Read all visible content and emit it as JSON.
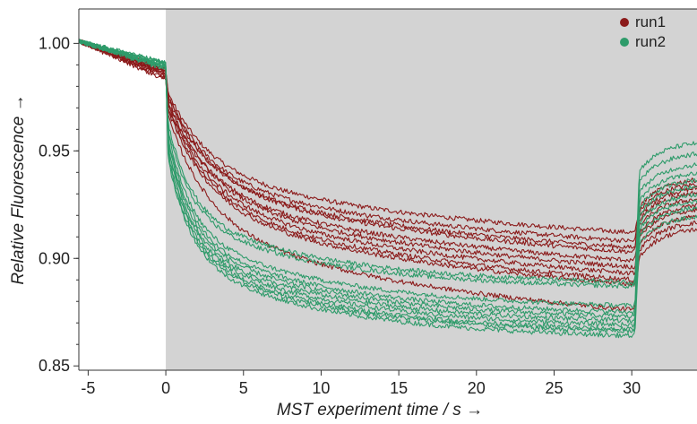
{
  "chart_data": {
    "type": "line",
    "xlabel": "MST experiment time / s →",
    "ylabel": "Relative Fluorescence →",
    "xlim": [
      -5.6,
      34.2
    ],
    "ylim": [
      0.848,
      1.016
    ],
    "xticks": [
      -5,
      0,
      5,
      10,
      15,
      20,
      25,
      30
    ],
    "yticks": [
      0.85,
      0.9,
      0.95,
      1.0
    ],
    "ytick_labels": [
      "0.85",
      "0.90",
      "0.95",
      "1.00"
    ],
    "shaded_region": {
      "from": 0,
      "to": 34.2,
      "color": "#d3d3d3"
    },
    "legend": {
      "position": "top-right"
    },
    "colors": {
      "run1": "#8b1a1a",
      "run2": "#2e9b6a"
    },
    "series": [
      {
        "name": "run1",
        "color": "#8b1a1a",
        "traces": [
          {
            "pre": 0.988,
            "drop": 0.977,
            "end": 0.912,
            "rec": 0.934
          },
          {
            "pre": 0.987,
            "drop": 0.975,
            "end": 0.908,
            "rec": 0.936
          },
          {
            "pre": 0.986,
            "drop": 0.974,
            "end": 0.905,
            "rec": 0.932
          },
          {
            "pre": 0.988,
            "drop": 0.976,
            "end": 0.903,
            "rec": 0.938
          },
          {
            "pre": 0.985,
            "drop": 0.972,
            "end": 0.899,
            "rec": 0.929
          },
          {
            "pre": 0.987,
            "drop": 0.973,
            "end": 0.896,
            "rec": 0.926
          },
          {
            "pre": 0.984,
            "drop": 0.971,
            "end": 0.893,
            "rec": 0.924
          },
          {
            "pre": 0.986,
            "drop": 0.97,
            "end": 0.89,
            "rec": 0.921
          },
          {
            "pre": 0.983,
            "drop": 0.969,
            "end": 0.888,
            "rec": 0.918
          },
          {
            "pre": 0.985,
            "drop": 0.966,
            "end": 0.876,
            "rec": 0.915
          }
        ]
      },
      {
        "name": "run2",
        "color": "#2e9b6a",
        "traces": [
          {
            "pre": 0.99,
            "drop": 0.963,
            "end": 0.889,
            "rec": 0.955
          },
          {
            "pre": 0.991,
            "drop": 0.96,
            "end": 0.887,
            "rec": 0.95
          },
          {
            "pre": 0.989,
            "drop": 0.958,
            "end": 0.878,
            "rec": 0.945
          },
          {
            "pre": 0.99,
            "drop": 0.956,
            "end": 0.875,
            "rec": 0.941
          },
          {
            "pre": 0.991,
            "drop": 0.954,
            "end": 0.873,
            "rec": 0.938
          },
          {
            "pre": 0.989,
            "drop": 0.952,
            "end": 0.871,
            "rec": 0.935
          },
          {
            "pre": 0.99,
            "drop": 0.951,
            "end": 0.869,
            "rec": 0.931
          },
          {
            "pre": 0.988,
            "drop": 0.949,
            "end": 0.867,
            "rec": 0.928
          },
          {
            "pre": 0.989,
            "drop": 0.947,
            "end": 0.866,
            "rec": 0.925
          },
          {
            "pre": 0.99,
            "drop": 0.946,
            "end": 0.864,
            "rec": 0.921
          }
        ]
      }
    ]
  }
}
